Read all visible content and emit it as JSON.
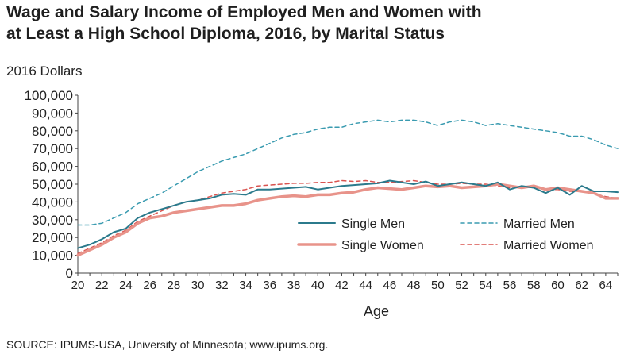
{
  "title_line1": "Wage and Salary Income of Employed Men and Women with",
  "title_line2": "at Least a High School Diploma, 2016, by Marital Status",
  "source": "SOURCE: IPUMS-USA, University of Minnesota; www.ipums.org.",
  "colors": {
    "single_men": "#2b7a8c",
    "married_men": "#3a9bb0",
    "single_women": "#e8938a",
    "married_women": "#d9534f",
    "axis": "#444444"
  },
  "chart_data": {
    "type": "line",
    "ylabel": "2016 Dollars",
    "xlabel": "Age",
    "ylim": [
      0,
      100000
    ],
    "xlim": [
      20,
      65
    ],
    "yticks": [
      "0",
      "10,000",
      "20,000",
      "30,000",
      "40,000",
      "50,000",
      "60,000",
      "70,000",
      "80,000",
      "90,000",
      "100,000"
    ],
    "xticks": [
      "20",
      "22",
      "24",
      "26",
      "28",
      "30",
      "32",
      "34",
      "36",
      "38",
      "40",
      "42",
      "44",
      "46",
      "48",
      "50",
      "52",
      "54",
      "56",
      "58",
      "60",
      "62",
      "64"
    ],
    "grid": false,
    "legend_position": "bottom-right",
    "x": [
      20,
      21,
      22,
      23,
      24,
      25,
      26,
      27,
      28,
      29,
      30,
      31,
      32,
      33,
      34,
      35,
      36,
      37,
      38,
      39,
      40,
      41,
      42,
      43,
      44,
      45,
      46,
      47,
      48,
      49,
      50,
      51,
      52,
      53,
      54,
      55,
      56,
      57,
      58,
      59,
      60,
      61,
      62,
      63,
      64,
      65
    ],
    "series": [
      {
        "name": "Single Men",
        "style": "solid",
        "values": [
          14000,
          16000,
          19000,
          23000,
          25000,
          31000,
          34000,
          36000,
          38000,
          40000,
          41000,
          42000,
          44000,
          44500,
          44000,
          47000,
          47000,
          47500,
          48000,
          48500,
          47000,
          48000,
          49000,
          49500,
          50000,
          50500,
          52000,
          51000,
          50000,
          51500,
          49000,
          50000,
          51000,
          50000,
          49000,
          51000,
          47000,
          49000,
          48000,
          45000,
          48000,
          44000,
          49000,
          46000,
          46000,
          45500
        ]
      },
      {
        "name": "Married Men",
        "style": "dashed",
        "values": [
          27000,
          27000,
          28000,
          31000,
          34000,
          39000,
          42000,
          45000,
          49000,
          53000,
          57000,
          60000,
          63000,
          65000,
          67000,
          70000,
          73000,
          76000,
          78000,
          79000,
          81000,
          82000,
          82000,
          84000,
          85000,
          86000,
          85000,
          86000,
          86000,
          85000,
          83000,
          85000,
          86000,
          85000,
          83000,
          84000,
          83000,
          82000,
          81000,
          80000,
          79000,
          77000,
          77000,
          75000,
          72000,
          70000
        ]
      },
      {
        "name": "Single Women",
        "style": "solid",
        "values": [
          10000,
          13000,
          16000,
          20000,
          23000,
          28000,
          31000,
          32000,
          34000,
          35000,
          36000,
          37000,
          38000,
          38000,
          39000,
          41000,
          42000,
          43000,
          43500,
          43000,
          44000,
          44000,
          45000,
          45500,
          47000,
          48000,
          47500,
          47000,
          48000,
          49000,
          48500,
          49000,
          48000,
          48500,
          49000,
          50000,
          49000,
          48000,
          49000,
          47000,
          48000,
          47000,
          46000,
          45000,
          42000,
          42000
        ]
      },
      {
        "name": "Married Women",
        "style": "dashed",
        "values": [
          11000,
          14000,
          17000,
          21000,
          24000,
          29000,
          32000,
          35000,
          38000,
          40000,
          41000,
          43000,
          45000,
          46000,
          47000,
          49000,
          49500,
          50000,
          50500,
          50500,
          51000,
          51000,
          52000,
          51500,
          52000,
          51000,
          51000,
          51500,
          52000,
          51000,
          50000,
          50000,
          50500,
          50000,
          50000,
          49000,
          48000,
          48500,
          48000,
          47000,
          47000,
          46000,
          46000,
          44500,
          43000,
          42000
        ]
      }
    ]
  }
}
